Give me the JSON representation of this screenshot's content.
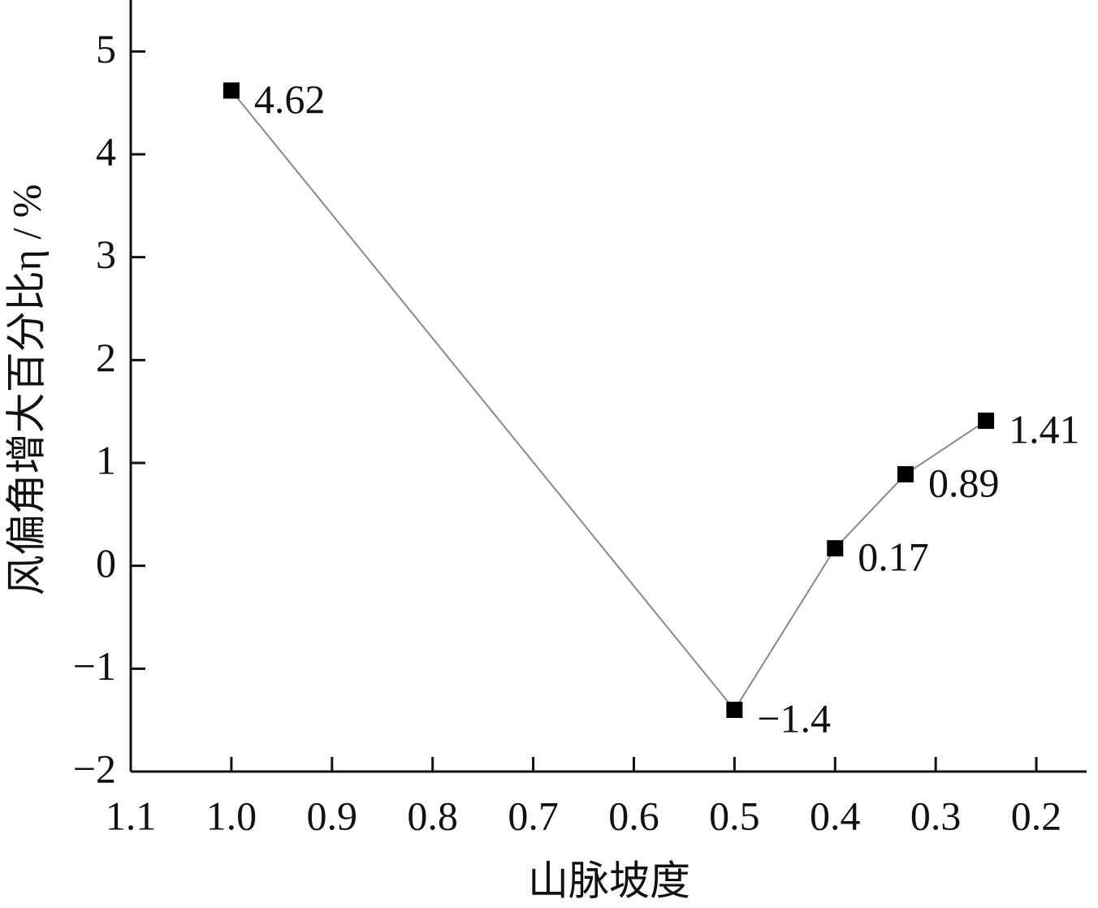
{
  "chart_data": {
    "type": "line",
    "x_label": "山脉坡度",
    "y_label": "风偏角增大百分比η / %",
    "x": [
      1.0,
      0.5,
      0.4,
      0.33,
      0.25
    ],
    "series": [
      {
        "color": "#000000",
        "line_color": "#888888",
        "values": [
          4.62,
          -1.4,
          0.17,
          0.89,
          1.41
        ],
        "value_labels": [
          "4.62",
          "−1.4",
          "0.17",
          "0.89",
          "1.41"
        ]
      }
    ],
    "xlim": [
      1.1,
      0.15
    ],
    "xticks": [
      1.1,
      {
        "value": 1,
        "label": "1.0"
      },
      0.9,
      0.8,
      0.7,
      0.6,
      0.5,
      0.4,
      0.3,
      0.2
    ],
    "ylim": [
      -2,
      5.5
    ],
    "yticks": [
      {
        "value": -2,
        "label": "−2"
      },
      {
        "value": -1,
        "label": "−1"
      },
      0,
      1,
      2,
      3,
      4,
      5
    ],
    "grid": false
  }
}
